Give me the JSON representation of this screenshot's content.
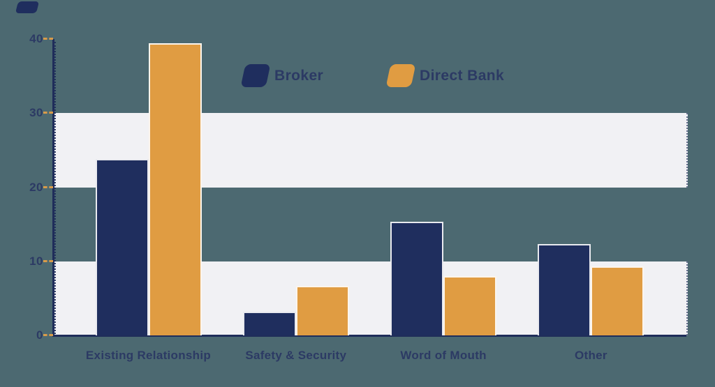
{
  "page": {
    "background_color": "#4c6971"
  },
  "decor": {
    "corner_shape": "navy-parallelogram",
    "color": "#1f2e5e"
  },
  "legend": {
    "position": "top-center"
  },
  "chart_data": {
    "type": "bar",
    "categories": [
      "Existing Relationship",
      "Safety & Security",
      "Word of Mouth",
      "Other"
    ],
    "series": [
      {
        "name": "Broker",
        "color": "#1f2e5e",
        "values": [
          23.8,
          3.2,
          15.3,
          12.3
        ]
      },
      {
        "name": "Direct Bank",
        "color": "#e09c42",
        "values": [
          39.4,
          6.7,
          8.0,
          9.3
        ]
      }
    ],
    "title": "",
    "xlabel": "",
    "ylabel": "",
    "ylim": [
      0,
      40
    ],
    "yticks": [
      0,
      10,
      20,
      30,
      40
    ],
    "grid_bands": [
      [
        0,
        10
      ],
      [
        20,
        30
      ]
    ],
    "grid": "horizontal-bands",
    "band_color": "#f1f1f4",
    "axis_color": "#1f2d5a",
    "tick_dash_color": "#d99b4a",
    "text_color": "#2c3a64",
    "legend_position": "top-center"
  }
}
